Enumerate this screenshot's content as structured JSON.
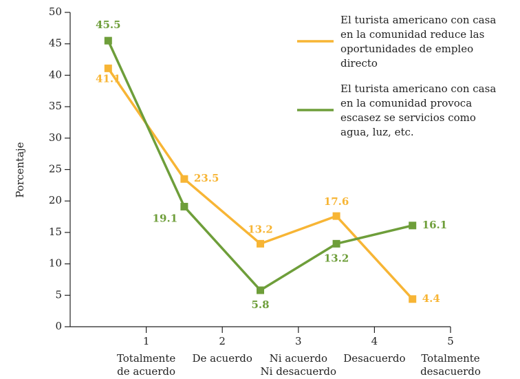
{
  "chart_data": {
    "type": "line",
    "y_label": "Porcentaje",
    "x": [
      0.5,
      1.5,
      2.5,
      3.5,
      4.5
    ],
    "xlim": [
      0,
      5
    ],
    "xticks": [
      1,
      2,
      3,
      4,
      5
    ],
    "categories": [
      "Totalmente\nde acuerdo",
      "De acuerdo",
      "Ni acuerdo\nNi desacuerdo",
      "Desacuerdo",
      "Totalmente\ndesacuerdo"
    ],
    "ylim": [
      0,
      50
    ],
    "yticks": [
      0,
      5,
      10,
      15,
      20,
      25,
      30,
      35,
      40,
      45,
      50
    ],
    "series": [
      {
        "name": "El turista americano con casa en la comunidad reduce las oportunidades de empleo directo",
        "color": "#f7b535",
        "values": [
          41.1,
          23.5,
          13.2,
          17.6,
          4.4
        ]
      },
      {
        "name": "El turista americano con casa en la comunidad provoca escasez se servicios como agua, luz, etc.",
        "color": "#6e9e3a",
        "values": [
          45.5,
          19.1,
          5.8,
          13.2,
          16.1
        ]
      }
    ]
  }
}
